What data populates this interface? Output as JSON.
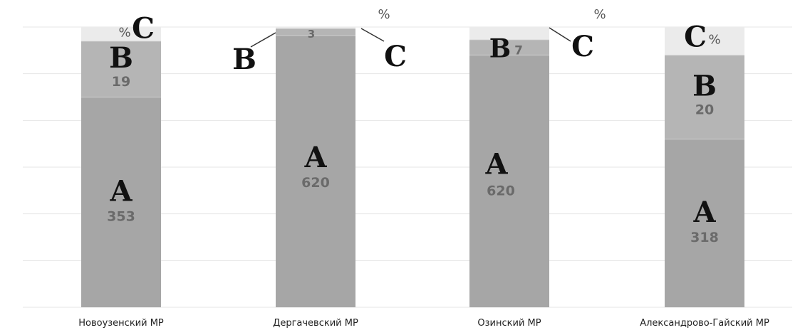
{
  "chart_data": {
    "type": "bar",
    "stacked": "percent",
    "categories": [
      "Новоузенский МР",
      "Дергачевский МР",
      "Озинский МР",
      "Александрово-Гайский МР"
    ],
    "series": [
      {
        "name": "A",
        "values": [
          353,
          620,
          620,
          318
        ],
        "color": "#a6a6a6"
      },
      {
        "name": "B",
        "values": [
          19,
          3,
          7,
          20
        ],
        "color": "#b5b5b5"
      },
      {
        "name": "C",
        "values": [
          null,
          null,
          null,
          null
        ],
        "color": "#ebebeb"
      }
    ],
    "shares": {
      "A": [
        0.75,
        0.97,
        0.9,
        0.6
      ],
      "B": [
        0.2,
        0.025,
        0.055,
        0.3
      ],
      "C": [
        0.05,
        0.005,
        0.045,
        0.1
      ]
    },
    "value_labels": {
      "A": [
        "353",
        "620",
        "620",
        "318"
      ],
      "B": [
        "19",
        "3",
        "7",
        "20"
      ],
      "C": [
        "%",
        "%",
        "%",
        "%"
      ]
    },
    "series_letters": [
      "A",
      "B",
      "C"
    ],
    "ylim": [
      0,
      1
    ],
    "grid": true,
    "legend": "none",
    "title": "",
    "xlabel": "",
    "ylabel": ""
  }
}
